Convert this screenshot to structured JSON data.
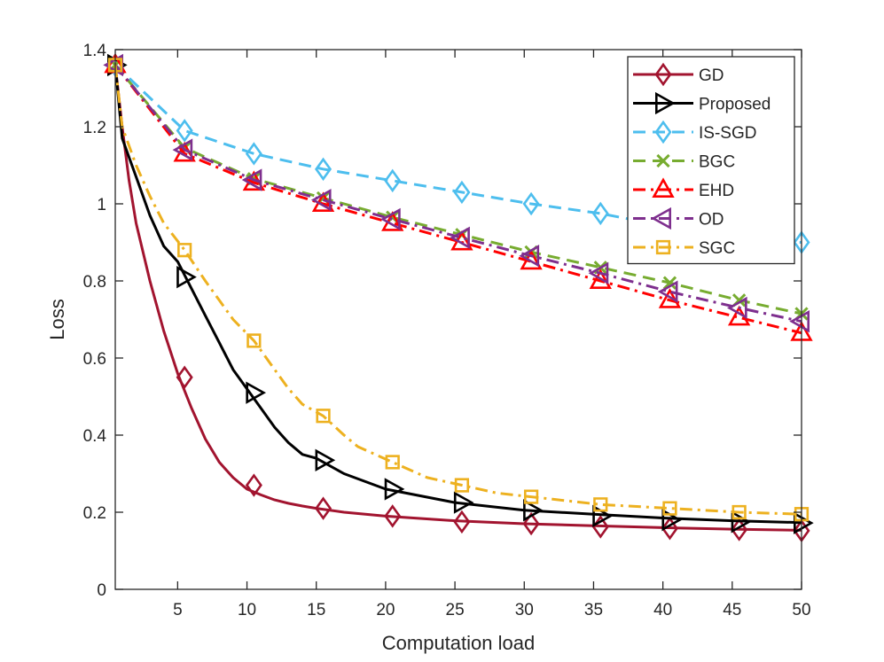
{
  "chart_data": {
    "type": "line",
    "title": "",
    "xlabel": "Computation load",
    "ylabel": "Loss",
    "xlim": [
      0.5,
      50
    ],
    "ylim": [
      0,
      1.4
    ],
    "xticks": [
      5,
      10,
      15,
      20,
      25,
      30,
      35,
      40,
      45,
      50
    ],
    "yticks": [
      0,
      0.2,
      0.4,
      0.6,
      0.8,
      1,
      1.2,
      1.4
    ],
    "xtick_labels": [
      "5",
      "10",
      "15",
      "20",
      "25",
      "30",
      "35",
      "40",
      "45",
      "50"
    ],
    "ytick_labels": [
      "0",
      "0.2",
      "0.4",
      "0.6",
      "0.8",
      "1",
      "1.2",
      "1.4"
    ],
    "grid": false,
    "legend_position": "top-right",
    "series": [
      {
        "name": "GD",
        "color": "#A2142F",
        "marker": "diamond",
        "dash": "solid",
        "line_x": [
          0.5,
          1,
          1.5,
          2,
          3,
          4,
          5,
          6,
          7,
          8,
          9,
          10,
          11,
          12,
          13,
          14,
          15,
          17,
          20,
          25,
          30,
          35,
          40,
          45,
          50
        ],
        "line_y": [
          1.36,
          1.2,
          1.06,
          0.95,
          0.8,
          0.67,
          0.56,
          0.47,
          0.39,
          0.33,
          0.29,
          0.26,
          0.245,
          0.232,
          0.223,
          0.216,
          0.21,
          0.2,
          0.19,
          0.178,
          0.17,
          0.165,
          0.16,
          0.156,
          0.153
        ],
        "marker_x": [
          0.5,
          5.5,
          10.5,
          15.5,
          20.5,
          25.5,
          30.5,
          35.5,
          40.5,
          45.5,
          50
        ],
        "marker_y": [
          1.36,
          0.55,
          0.27,
          0.21,
          0.19,
          0.175,
          0.17,
          0.162,
          0.158,
          0.155,
          0.152
        ]
      },
      {
        "name": "Proposed",
        "color": "#000000",
        "marker": "triangle-right",
        "dash": "solid",
        "line_x": [
          0.5,
          1,
          2,
          3,
          4,
          5,
          6,
          7,
          8,
          9,
          10,
          11,
          12,
          13,
          14,
          15,
          17,
          20,
          25,
          30,
          35,
          40,
          45,
          50
        ],
        "line_y": [
          1.36,
          1.17,
          1.07,
          0.97,
          0.89,
          0.85,
          0.78,
          0.71,
          0.64,
          0.57,
          0.52,
          0.47,
          0.42,
          0.38,
          0.35,
          0.34,
          0.3,
          0.26,
          0.225,
          0.205,
          0.195,
          0.185,
          0.178,
          0.173
        ],
        "marker_x": [
          0.5,
          5.5,
          10.5,
          15.5,
          20.5,
          25.5,
          30.5,
          35.5,
          40.5,
          45.5,
          50
        ],
        "marker_y": [
          1.36,
          0.81,
          0.51,
          0.335,
          0.26,
          0.225,
          0.205,
          0.19,
          0.18,
          0.175,
          0.172
        ]
      },
      {
        "name": "IS-SGD",
        "color": "#4DBEEE",
        "marker": "diamond",
        "dash": "dashed",
        "line_x": [
          0.5,
          5.5,
          10.5,
          15.5,
          20.5,
          25.5,
          30.5,
          35.5,
          40.5,
          45.5,
          50
        ],
        "line_y": [
          1.36,
          1.19,
          1.13,
          1.09,
          1.06,
          1.03,
          1.0,
          0.975,
          0.94,
          0.91,
          0.9
        ],
        "marker_x": [
          0.5,
          5.5,
          10.5,
          15.5,
          20.5,
          25.5,
          30.5,
          35.5,
          50
        ],
        "marker_y": [
          1.36,
          1.19,
          1.13,
          1.09,
          1.06,
          1.03,
          1.0,
          0.975,
          0.9
        ]
      },
      {
        "name": "BGC",
        "color": "#77AC30",
        "marker": "x",
        "dash": "dashed",
        "line_x": [
          0.5,
          5.5,
          10.5,
          15.5,
          20.5,
          25.5,
          30.5,
          35.5,
          40.5,
          45.5,
          50
        ],
        "line_y": [
          1.36,
          1.145,
          1.065,
          1.015,
          0.965,
          0.92,
          0.875,
          0.835,
          0.795,
          0.75,
          0.715
        ],
        "marker_x": [
          0.5,
          5.5,
          10.5,
          15.5,
          20.5,
          25.5,
          30.5,
          35.5,
          40.5,
          45.5,
          50
        ],
        "marker_y": [
          1.36,
          1.145,
          1.065,
          1.015,
          0.965,
          0.92,
          0.875,
          0.835,
          0.795,
          0.75,
          0.715
        ]
      },
      {
        "name": "EHD",
        "color": "#FF0000",
        "marker": "triangle-up",
        "dash": "dashdot",
        "line_x": [
          0.5,
          5.5,
          10.5,
          15.5,
          20.5,
          25.5,
          30.5,
          35.5,
          40.5,
          45.5,
          50
        ],
        "line_y": [
          1.36,
          1.13,
          1.055,
          1.0,
          0.95,
          0.9,
          0.85,
          0.8,
          0.75,
          0.705,
          0.665
        ],
        "marker_x": [
          0.5,
          5.5,
          10.5,
          15.5,
          20.5,
          25.5,
          30.5,
          35.5,
          40.5,
          45.5,
          50
        ],
        "marker_y": [
          1.36,
          1.13,
          1.055,
          1.0,
          0.95,
          0.9,
          0.85,
          0.8,
          0.75,
          0.705,
          0.665
        ]
      },
      {
        "name": "OD",
        "color": "#7E2F8E",
        "marker": "triangle-left",
        "dash": "dashdot",
        "line_x": [
          0.5,
          5.5,
          10.5,
          15.5,
          20.5,
          25.5,
          30.5,
          35.5,
          40.5,
          45.5,
          50
        ],
        "line_y": [
          1.36,
          1.14,
          1.062,
          1.01,
          0.96,
          0.912,
          0.865,
          0.82,
          0.772,
          0.73,
          0.695
        ],
        "marker_x": [
          0.5,
          5.5,
          10.5,
          15.5,
          20.5,
          25.5,
          30.5,
          35.5,
          40.5,
          45.5,
          50
        ],
        "marker_y": [
          1.36,
          1.14,
          1.062,
          1.01,
          0.96,
          0.912,
          0.865,
          0.82,
          0.772,
          0.73,
          0.695
        ]
      },
      {
        "name": "SGC",
        "color": "#EDB120",
        "marker": "square",
        "dash": "dashdot",
        "line_x": [
          0.5,
          1,
          2,
          3,
          4,
          5.5,
          7,
          8,
          9,
          10.5,
          12,
          13,
          14,
          15.5,
          17,
          18,
          20.5,
          23,
          25.5,
          28,
          30.5,
          35.5,
          40.5,
          45.5,
          50
        ],
        "line_y": [
          1.36,
          1.2,
          1.1,
          1.02,
          0.95,
          0.88,
          0.8,
          0.75,
          0.7,
          0.645,
          0.57,
          0.52,
          0.48,
          0.45,
          0.4,
          0.37,
          0.33,
          0.29,
          0.27,
          0.25,
          0.24,
          0.22,
          0.21,
          0.2,
          0.195
        ],
        "marker_x": [
          0.5,
          5.5,
          10.5,
          15.5,
          20.5,
          25.5,
          30.5,
          35.5,
          40.5,
          45.5,
          50
        ],
        "marker_y": [
          1.36,
          0.88,
          0.645,
          0.45,
          0.33,
          0.27,
          0.24,
          0.22,
          0.21,
          0.2,
          0.195
        ]
      }
    ]
  }
}
